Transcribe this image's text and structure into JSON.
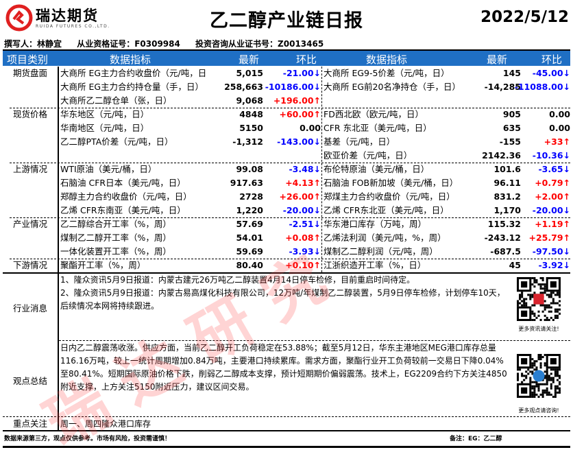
{
  "header": {
    "logo_cn": "瑞达期货",
    "logo_en": "RUIDA FUTURES CO.,LTD.",
    "title": "乙二醇产业链日报",
    "date": "2022/5/12"
  },
  "author": {
    "writer": "撰写人：林静宜",
    "qualification": "从业资格证号：F0309984",
    "consult": "投资咨询从业证书号：Z0013465"
  },
  "table_header": {
    "category": "项目类别",
    "indicator_left": "数据指标",
    "latest_left": "最新",
    "change_left": "环比",
    "indicator_right": "数据指标",
    "latest_right": "最新",
    "change_right": "环比"
  },
  "colors": {
    "header_bg": "#1f6fc4",
    "up": "#ff0000",
    "down": "#0000ff",
    "watermark": "#ff3c3c"
  },
  "sections": [
    {
      "category": "期货盘面",
      "rows": [
        {
          "l": "大商所 EG主力合约收盘价（元/吨，日",
          "lv": "5,015",
          "lc": "-21.00↓",
          "ld": "down",
          "r": "大商所 EG9-5价差（元/吨，日）",
          "rv": "145",
          "rc": "-45.00↓",
          "rd": "down"
        },
        {
          "l": "大商所 EG主力合约持仓量（手，日）",
          "lv": "258,663",
          "lc": "-10186.00↓",
          "ld": "down",
          "r": "大商所 EG前20名净持仓（手，日）",
          "rv": "-14,285",
          "rc": "-11088.00↓",
          "rd": "down"
        },
        {
          "l": "大商所乙二醇仓单（张，日）",
          "lv": "9,068",
          "lc": "+196.00↑",
          "ld": "up",
          "r": "",
          "rv": "",
          "rc": "",
          "rd": "flat"
        }
      ]
    },
    {
      "category": "现货价格",
      "rows": [
        {
          "l": "华东地区（元/吨，日）",
          "lv": "4848",
          "lc": "+60.00↑",
          "ld": "up",
          "r": "FD西北欧（欧元/吨，日）",
          "rv": "905",
          "rc": "0.00",
          "rd": "flat"
        },
        {
          "l": "华南地区（元/吨，日）",
          "lv": "5150",
          "lc": "0.00",
          "ld": "flat",
          "r": "CFR 东北亚（美元/吨，日）",
          "rv": "635",
          "rc": "0.00",
          "rd": "flat"
        },
        {
          "l": "乙二醇PTA价差（元/吨，日）",
          "lv": "-1,312",
          "lc": "-143.00↓",
          "ld": "down",
          "r": "基差（元/吨，日）",
          "rv": "-155",
          "rc": "+33↑",
          "rd": "up"
        },
        {
          "l": "",
          "lv": "",
          "lc": "",
          "ld": "flat",
          "r": "欧亚价差（元/吨，日）",
          "rv": "2142.36",
          "rc": "-10.36↓",
          "rd": "down"
        }
      ]
    },
    {
      "category": "上游情况",
      "rows": [
        {
          "l": "WTI原油（美元/桶，日）",
          "lv": "99.08",
          "lc": "-3.48↓",
          "ld": "down",
          "r": "布伦特原油（美元/桶，日）",
          "rv": "101.6",
          "rc": "-3.65↓",
          "rd": "down"
        },
        {
          "l": "石脑油 CFR日本（美元/吨，日）",
          "lv": "917.63",
          "lc": "+4.13↑",
          "ld": "up",
          "r": "石脑油 FOB新加坡（美元/桶，日）",
          "rv": "96.11",
          "rc": "+0.79↑",
          "rd": "up"
        },
        {
          "l": "郑醇主力合约收盘价（元/吨，日）",
          "lv": "2728",
          "lc": "+26.00↑",
          "ld": "up",
          "r": "郑煤主力合约收盘价（元/吨，日）",
          "rv": "831.2",
          "rc": "+2.00↑",
          "rd": "up"
        },
        {
          "l": "乙烯 CFR东南亚（美元/吨，日）",
          "lv": "1,220",
          "lc": "-20.00↓",
          "ld": "down",
          "r": "乙烯 CFR东北亚（美元/吨，日）",
          "rv": "1,170",
          "rc": "-20.00↓",
          "rd": "down"
        }
      ]
    },
    {
      "category": "产业情况",
      "rows": [
        {
          "l": "乙二醇综合开工率（%，周）",
          "lv": "57.69",
          "lc": "-2.51↓",
          "ld": "down",
          "r": "华东港口库存（万吨，周）",
          "rv": "115.32",
          "rc": "+1.19↑",
          "rd": "up"
        },
        {
          "l": "煤制乙二醇开工率（%，周）",
          "lv": "54.01",
          "lc": "+0.08↑",
          "ld": "up",
          "r": "乙烯法利润（美元/吨，%，周）",
          "rv": "-243.12",
          "rc": "+25.79↑",
          "rd": "up"
        },
        {
          "l": "一体化装置开工率（%，周）",
          "lv": "59.69",
          "lc": "-3.93↓",
          "ld": "down",
          "r": "煤制乙二醇利润（元/吨，周）",
          "rv": "-687.5",
          "rc": "-97.50↓",
          "rd": "down"
        }
      ]
    },
    {
      "category": "下游情况",
      "rows": [
        {
          "l": "聚酯开工率（%，周）",
          "lv": "80.40",
          "lc": "+0.10↑",
          "ld": "up",
          "r": "江浙织造开工率（%，日）",
          "rv": "45",
          "rc": "-3.92↓",
          "rd": "down"
        }
      ]
    }
  ],
  "news": {
    "category": "行业消息",
    "lines": [
      "1、隆众资讯5月9日报道：内蒙古建元26万吨乙二醇装置4月14日停车检修，目前重启时间待定。",
      "2、隆众资讯5月9日报道：内蒙古易高煤化科技有限公司，12万吨/年煤制乙二醇装置，5月9日停车检修，计划停车10天，后续情况本网将持续跟进。"
    ],
    "qr_caption": "更多资讯请关注!"
  },
  "view": {
    "category": "观点总结",
    "text": "日内乙二醇震荡收涨。供应方面，当前乙二醇开工负荷稳定在53.88%；截至5月12日，华东主港地区MEG港口库存总量116.16万吨，较上一统计周期增加0.84万吨，主要港口持续累库。需求方面，聚酯行业开工负荷较前一交易日下降0.04%至80.41%。短期国际原油价格下跌，削弱乙二醇成本支撑，预计短期期价偏弱震荡。技术上，EG2209合约下方关注4850附近支撑，上方关注5150附近压力，建议区间交易。",
    "qr_caption": "更多观点请咨询!"
  },
  "focus": {
    "category": "重点关注",
    "text": "周一、周四隆众港口库存"
  },
  "footer": {
    "disclaimer": "数据来源第三方，观点仅供参考。市场有风险，投资需谨慎！",
    "note": "备注：EG：乙二醇"
  },
  "watermark": "瑞 达 研 究"
}
